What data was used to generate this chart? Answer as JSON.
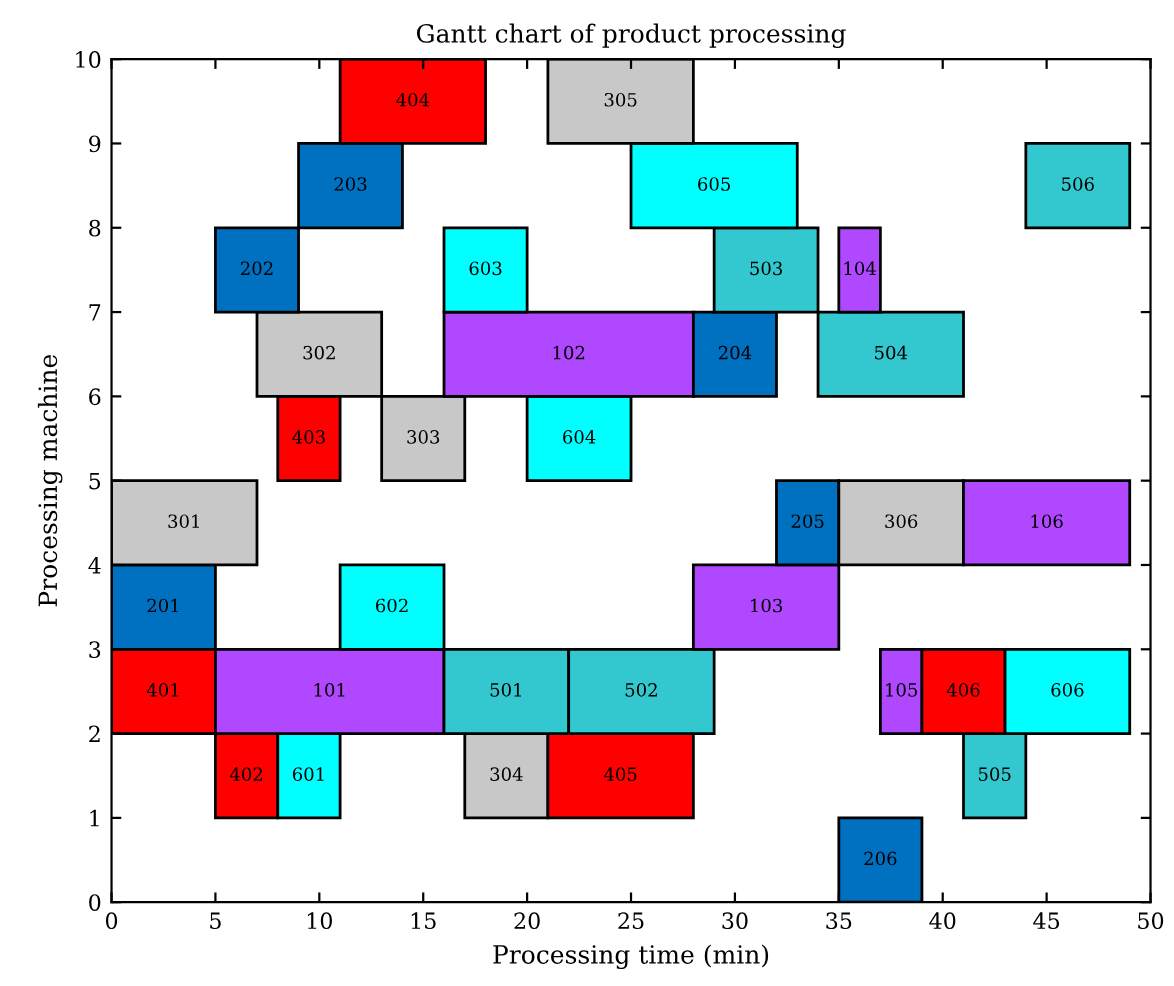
{
  "chart_data": {
    "type": "bar",
    "orientation": "horizontal",
    "title": "Gantt chart of product processing",
    "xlabel": "Processing time (min)",
    "ylabel": "Processing machine",
    "series": [
      {
        "name": "206",
        "color": "#0070c0",
        "x": [
          0.5
        ],
        "base": [
          35
        ],
        "values": [
          4
        ]
      },
      {
        "name": "402",
        "color": "#ff0000",
        "x": [
          1.5
        ],
        "base": [
          5
        ],
        "values": [
          3
        ]
      },
      {
        "name": "601",
        "color": "#00ffff",
        "x": [
          1.5
        ],
        "base": [
          8
        ],
        "values": [
          3
        ]
      },
      {
        "name": "304",
        "color": "#c8c8c8",
        "x": [
          1.5
        ],
        "base": [
          17
        ],
        "values": [
          4
        ]
      },
      {
        "name": "405",
        "color": "#ff0000",
        "x": [
          1.5
        ],
        "base": [
          21
        ],
        "values": [
          7
        ]
      },
      {
        "name": "505",
        "color": "#33c8d0",
        "x": [
          1.5
        ],
        "base": [
          41
        ],
        "values": [
          3
        ]
      },
      {
        "name": "401",
        "color": "#ff0000",
        "x": [
          2.5
        ],
        "base": [
          0
        ],
        "values": [
          5
        ]
      },
      {
        "name": "101",
        "color": "#b048ff",
        "x": [
          2.5
        ],
        "base": [
          5
        ],
        "values": [
          11
        ]
      },
      {
        "name": "501",
        "color": "#33c8d0",
        "x": [
          2.5
        ],
        "base": [
          16
        ],
        "values": [
          6
        ]
      },
      {
        "name": "502",
        "color": "#33c8d0",
        "x": [
          2.5
        ],
        "base": [
          22
        ],
        "values": [
          7
        ]
      },
      {
        "name": "105",
        "color": "#b048ff",
        "x": [
          2.5
        ],
        "base": [
          37
        ],
        "values": [
          2
        ]
      },
      {
        "name": "406",
        "color": "#ff0000",
        "x": [
          2.5
        ],
        "base": [
          39
        ],
        "values": [
          4
        ]
      },
      {
        "name": "606",
        "color": "#00ffff",
        "x": [
          2.5
        ],
        "base": [
          43
        ],
        "values": [
          6
        ]
      },
      {
        "name": "201",
        "color": "#0070c0",
        "x": [
          3.5
        ],
        "base": [
          0
        ],
        "values": [
          5
        ]
      },
      {
        "name": "602",
        "color": "#00ffff",
        "x": [
          3.5
        ],
        "base": [
          11
        ],
        "values": [
          5
        ]
      },
      {
        "name": "103",
        "color": "#b048ff",
        "x": [
          3.5
        ],
        "base": [
          28
        ],
        "values": [
          7
        ]
      },
      {
        "name": "301",
        "color": "#c8c8c8",
        "x": [
          4.5
        ],
        "base": [
          0
        ],
        "values": [
          7
        ]
      },
      {
        "name": "205",
        "color": "#0070c0",
        "x": [
          4.5
        ],
        "base": [
          32
        ],
        "values": [
          3
        ]
      },
      {
        "name": "306",
        "color": "#c8c8c8",
        "x": [
          4.5
        ],
        "base": [
          35
        ],
        "values": [
          6
        ]
      },
      {
        "name": "106",
        "color": "#b048ff",
        "x": [
          4.5
        ],
        "base": [
          41
        ],
        "values": [
          8
        ]
      },
      {
        "name": "403",
        "color": "#ff0000",
        "x": [
          5.5
        ],
        "base": [
          8
        ],
        "values": [
          3
        ]
      },
      {
        "name": "303",
        "color": "#c8c8c8",
        "x": [
          5.5
        ],
        "base": [
          13
        ],
        "values": [
          4
        ]
      },
      {
        "name": "604",
        "color": "#00ffff",
        "x": [
          5.5
        ],
        "base": [
          20
        ],
        "values": [
          5
        ]
      },
      {
        "name": "302",
        "color": "#c8c8c8",
        "x": [
          6.5
        ],
        "base": [
          7
        ],
        "values": [
          6
        ]
      },
      {
        "name": "102",
        "color": "#b048ff",
        "x": [
          6.5
        ],
        "base": [
          16
        ],
        "values": [
          12
        ]
      },
      {
        "name": "204",
        "color": "#0070c0",
        "x": [
          6.5
        ],
        "base": [
          28
        ],
        "values": [
          4
        ]
      },
      {
        "name": "504",
        "color": "#33c8d0",
        "x": [
          6.5
        ],
        "base": [
          34
        ],
        "values": [
          7
        ]
      },
      {
        "name": "202",
        "color": "#0070c0",
        "x": [
          7.5
        ],
        "base": [
          5
        ],
        "values": [
          4
        ]
      },
      {
        "name": "603",
        "color": "#00ffff",
        "x": [
          7.5
        ],
        "base": [
          16
        ],
        "values": [
          4
        ]
      },
      {
        "name": "503",
        "color": "#33c8d0",
        "x": [
          7.5
        ],
        "base": [
          29
        ],
        "values": [
          5
        ]
      },
      {
        "name": "104",
        "color": "#b048ff",
        "x": [
          7.5
        ],
        "base": [
          35
        ],
        "values": [
          2
        ]
      },
      {
        "name": "203",
        "color": "#0070c0",
        "x": [
          8.5
        ],
        "base": [
          9
        ],
        "values": [
          5
        ]
      },
      {
        "name": "605",
        "color": "#00ffff",
        "x": [
          8.5
        ],
        "base": [
          25
        ],
        "values": [
          8
        ]
      },
      {
        "name": "506",
        "color": "#33c8d0",
        "x": [
          8.5
        ],
        "base": [
          44
        ],
        "values": [
          5
        ]
      },
      {
        "name": "404",
        "color": "#ff0000",
        "x": [
          9.5
        ],
        "base": [
          11
        ],
        "values": [
          7
        ]
      },
      {
        "name": "305",
        "color": "#c8c8c8",
        "x": [
          9.5
        ],
        "base": [
          21
        ],
        "values": [
          7
        ]
      }
    ],
    "xlim": [
      0,
      50
    ],
    "xticks": [
      0,
      5,
      10,
      15,
      20,
      25,
      30,
      35,
      40,
      45,
      50
    ],
    "ylim": [
      0,
      10
    ],
    "yticks": [
      0,
      1,
      2,
      3,
      4,
      5,
      6,
      7,
      8,
      9,
      10
    ],
    "grid": false,
    "legend": false
  }
}
